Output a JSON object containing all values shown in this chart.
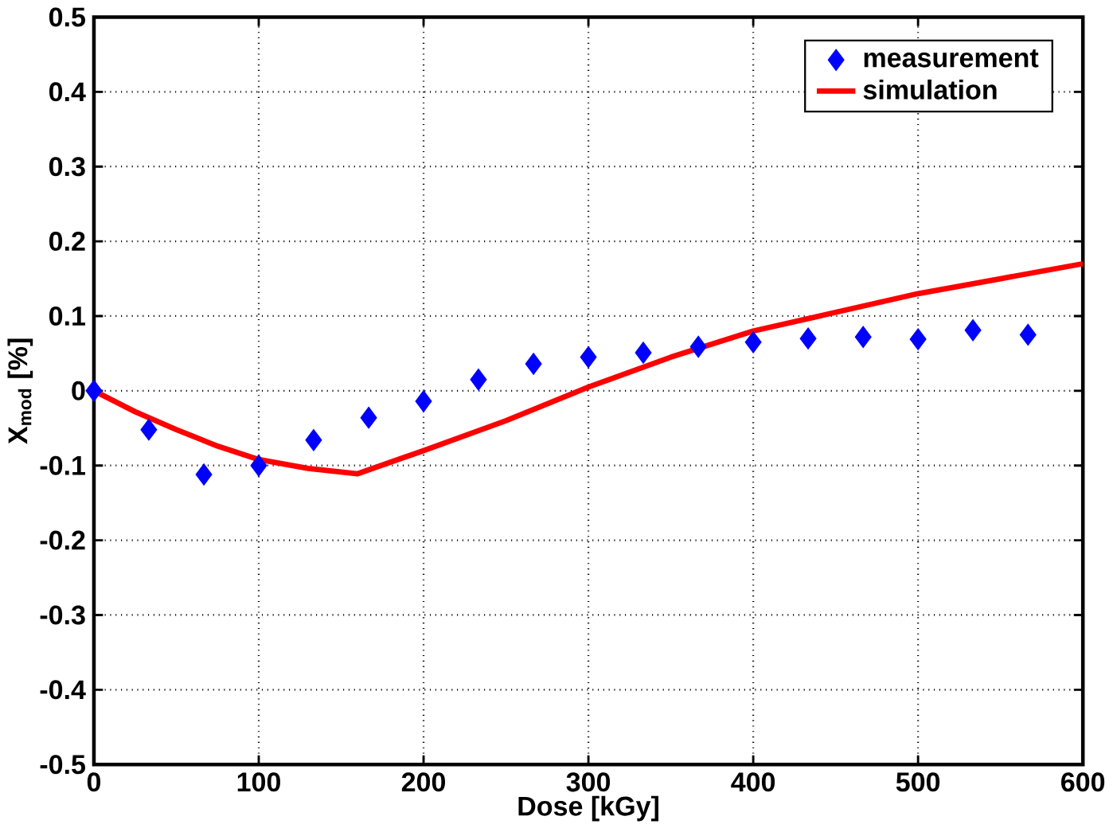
{
  "chart_data": {
    "type": "line",
    "xlabel": "Dose [kGy]",
    "ylabel": "X$_{mod}$ [%]",
    "xlim": [
      0,
      600
    ],
    "ylim": [
      -0.5,
      0.5
    ],
    "xticks": [
      0,
      100,
      200,
      300,
      400,
      500,
      600
    ],
    "yticks": [
      -0.5,
      -0.4,
      -0.3,
      -0.2,
      -0.1,
      0,
      0.1,
      0.2,
      0.3,
      0.4,
      0.5
    ],
    "grid": true,
    "legend": "top right",
    "series": [
      {
        "name": "measurement",
        "type": "scatter",
        "marker": "diamond",
        "color": "#0000ff",
        "x": [
          0,
          33.3,
          66.7,
          100,
          133.3,
          166.7,
          200,
          233.3,
          266.7,
          300,
          333.3,
          366.7,
          400,
          433.3,
          466.7,
          500,
          533.3,
          566.7
        ],
        "values": [
          0,
          -0.052,
          -0.112,
          -0.1,
          -0.066,
          -0.036,
          -0.014,
          0.015,
          0.036,
          0.045,
          0.051,
          0.059,
          0.065,
          0.07,
          0.072,
          0.069,
          0.081,
          0.075
        ]
      },
      {
        "name": "simulation",
        "marker": "none",
        "line_style": "solid",
        "color": "#ff0000",
        "x": [
          0,
          25,
          50,
          75,
          100,
          130,
          160,
          200,
          250,
          300,
          350,
          400,
          450,
          500,
          550,
          600
        ],
        "values": [
          0,
          -0.028,
          -0.052,
          -0.074,
          -0.092,
          -0.104,
          -0.111,
          -0.08,
          -0.04,
          0.005,
          0.045,
          0.08,
          0.105,
          0.13,
          0.15,
          0.17
        ]
      }
    ]
  }
}
